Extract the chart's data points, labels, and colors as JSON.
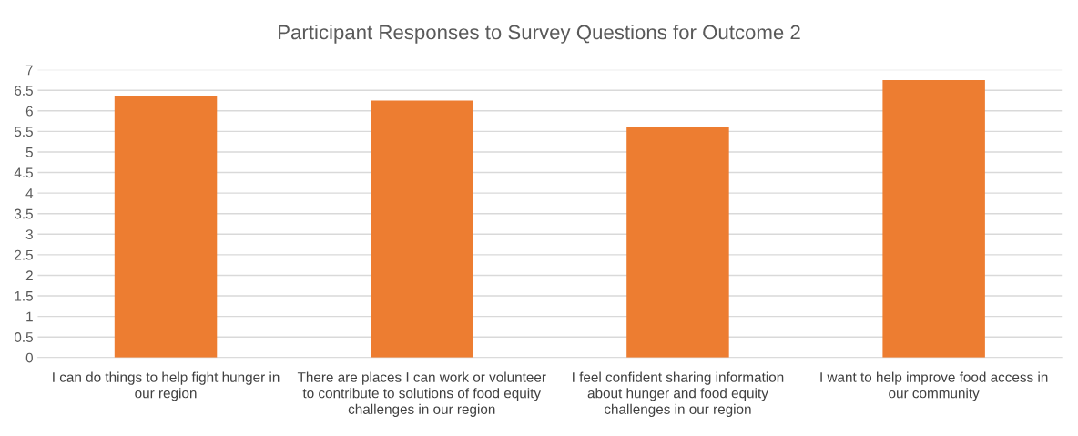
{
  "chart_data": {
    "type": "bar",
    "title": "Participant Responses to Survey Questions for Outcome 2",
    "categories": [
      "I can do things to help fight hunger in our region",
      "There are places I can work or volunteer to contribute to solutions of food equity challenges in our region",
      "I feel confident sharing information about hunger and food equity challenges in our region",
      "I want to help improve food access in our community"
    ],
    "values": [
      6.37,
      6.25,
      5.62,
      6.75
    ],
    "color": "#ed7d31",
    "ylim": [
      0,
      7
    ],
    "yticks": [
      0,
      {
        "value": 0.5,
        "label": "0.5"
      },
      1,
      {
        "value": 1.5,
        "label": "1.5"
      },
      2,
      {
        "value": 2.5,
        "label": "2.5"
      },
      3,
      {
        "value": 3.5,
        "label": "3.5"
      },
      4,
      {
        "value": 4.5,
        "label": "4.5"
      },
      5,
      {
        "value": 5.5,
        "label": "5.5"
      },
      6,
      {
        "value": 6.5,
        "label": "6.5"
      },
      7
    ],
    "grid": "y",
    "legend": false
  }
}
